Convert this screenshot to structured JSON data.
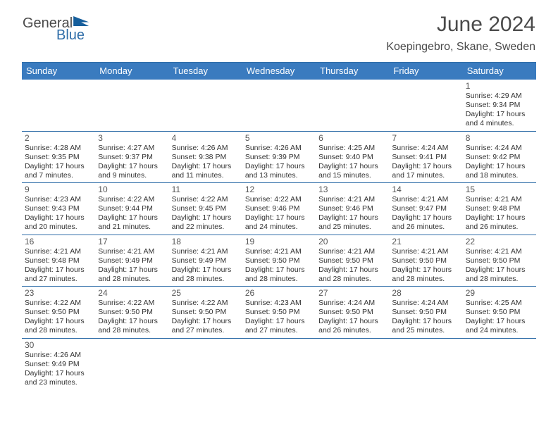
{
  "logo": {
    "word1": "General",
    "word2": "Blue"
  },
  "title": "June 2024",
  "subtitle": "Koepingebro, Skane, Sweden",
  "weekdays": [
    "Sunday",
    "Monday",
    "Tuesday",
    "Wednesday",
    "Thursday",
    "Friday",
    "Saturday"
  ],
  "colors": {
    "header_bar": "#3a7bbf",
    "rule": "#2f6da8",
    "title_text": "#4a4a4a",
    "body_text": "#333333"
  },
  "weeks": [
    [
      null,
      null,
      null,
      null,
      null,
      null,
      {
        "n": "1",
        "sr": "Sunrise: 4:29 AM",
        "ss": "Sunset: 9:34 PM",
        "d1": "Daylight: 17 hours",
        "d2": "and 4 minutes."
      }
    ],
    [
      {
        "n": "2",
        "sr": "Sunrise: 4:28 AM",
        "ss": "Sunset: 9:35 PM",
        "d1": "Daylight: 17 hours",
        "d2": "and 7 minutes."
      },
      {
        "n": "3",
        "sr": "Sunrise: 4:27 AM",
        "ss": "Sunset: 9:37 PM",
        "d1": "Daylight: 17 hours",
        "d2": "and 9 minutes."
      },
      {
        "n": "4",
        "sr": "Sunrise: 4:26 AM",
        "ss": "Sunset: 9:38 PM",
        "d1": "Daylight: 17 hours",
        "d2": "and 11 minutes."
      },
      {
        "n": "5",
        "sr": "Sunrise: 4:26 AM",
        "ss": "Sunset: 9:39 PM",
        "d1": "Daylight: 17 hours",
        "d2": "and 13 minutes."
      },
      {
        "n": "6",
        "sr": "Sunrise: 4:25 AM",
        "ss": "Sunset: 9:40 PM",
        "d1": "Daylight: 17 hours",
        "d2": "and 15 minutes."
      },
      {
        "n": "7",
        "sr": "Sunrise: 4:24 AM",
        "ss": "Sunset: 9:41 PM",
        "d1": "Daylight: 17 hours",
        "d2": "and 17 minutes."
      },
      {
        "n": "8",
        "sr": "Sunrise: 4:24 AM",
        "ss": "Sunset: 9:42 PM",
        "d1": "Daylight: 17 hours",
        "d2": "and 18 minutes."
      }
    ],
    [
      {
        "n": "9",
        "sr": "Sunrise: 4:23 AM",
        "ss": "Sunset: 9:43 PM",
        "d1": "Daylight: 17 hours",
        "d2": "and 20 minutes."
      },
      {
        "n": "10",
        "sr": "Sunrise: 4:22 AM",
        "ss": "Sunset: 9:44 PM",
        "d1": "Daylight: 17 hours",
        "d2": "and 21 minutes."
      },
      {
        "n": "11",
        "sr": "Sunrise: 4:22 AM",
        "ss": "Sunset: 9:45 PM",
        "d1": "Daylight: 17 hours",
        "d2": "and 22 minutes."
      },
      {
        "n": "12",
        "sr": "Sunrise: 4:22 AM",
        "ss": "Sunset: 9:46 PM",
        "d1": "Daylight: 17 hours",
        "d2": "and 24 minutes."
      },
      {
        "n": "13",
        "sr": "Sunrise: 4:21 AM",
        "ss": "Sunset: 9:46 PM",
        "d1": "Daylight: 17 hours",
        "d2": "and 25 minutes."
      },
      {
        "n": "14",
        "sr": "Sunrise: 4:21 AM",
        "ss": "Sunset: 9:47 PM",
        "d1": "Daylight: 17 hours",
        "d2": "and 26 minutes."
      },
      {
        "n": "15",
        "sr": "Sunrise: 4:21 AM",
        "ss": "Sunset: 9:48 PM",
        "d1": "Daylight: 17 hours",
        "d2": "and 26 minutes."
      }
    ],
    [
      {
        "n": "16",
        "sr": "Sunrise: 4:21 AM",
        "ss": "Sunset: 9:48 PM",
        "d1": "Daylight: 17 hours",
        "d2": "and 27 minutes."
      },
      {
        "n": "17",
        "sr": "Sunrise: 4:21 AM",
        "ss": "Sunset: 9:49 PM",
        "d1": "Daylight: 17 hours",
        "d2": "and 28 minutes."
      },
      {
        "n": "18",
        "sr": "Sunrise: 4:21 AM",
        "ss": "Sunset: 9:49 PM",
        "d1": "Daylight: 17 hours",
        "d2": "and 28 minutes."
      },
      {
        "n": "19",
        "sr": "Sunrise: 4:21 AM",
        "ss": "Sunset: 9:50 PM",
        "d1": "Daylight: 17 hours",
        "d2": "and 28 minutes."
      },
      {
        "n": "20",
        "sr": "Sunrise: 4:21 AM",
        "ss": "Sunset: 9:50 PM",
        "d1": "Daylight: 17 hours",
        "d2": "and 28 minutes."
      },
      {
        "n": "21",
        "sr": "Sunrise: 4:21 AM",
        "ss": "Sunset: 9:50 PM",
        "d1": "Daylight: 17 hours",
        "d2": "and 28 minutes."
      },
      {
        "n": "22",
        "sr": "Sunrise: 4:21 AM",
        "ss": "Sunset: 9:50 PM",
        "d1": "Daylight: 17 hours",
        "d2": "and 28 minutes."
      }
    ],
    [
      {
        "n": "23",
        "sr": "Sunrise: 4:22 AM",
        "ss": "Sunset: 9:50 PM",
        "d1": "Daylight: 17 hours",
        "d2": "and 28 minutes."
      },
      {
        "n": "24",
        "sr": "Sunrise: 4:22 AM",
        "ss": "Sunset: 9:50 PM",
        "d1": "Daylight: 17 hours",
        "d2": "and 28 minutes."
      },
      {
        "n": "25",
        "sr": "Sunrise: 4:22 AM",
        "ss": "Sunset: 9:50 PM",
        "d1": "Daylight: 17 hours",
        "d2": "and 27 minutes."
      },
      {
        "n": "26",
        "sr": "Sunrise: 4:23 AM",
        "ss": "Sunset: 9:50 PM",
        "d1": "Daylight: 17 hours",
        "d2": "and 27 minutes."
      },
      {
        "n": "27",
        "sr": "Sunrise: 4:24 AM",
        "ss": "Sunset: 9:50 PM",
        "d1": "Daylight: 17 hours",
        "d2": "and 26 minutes."
      },
      {
        "n": "28",
        "sr": "Sunrise: 4:24 AM",
        "ss": "Sunset: 9:50 PM",
        "d1": "Daylight: 17 hours",
        "d2": "and 25 minutes."
      },
      {
        "n": "29",
        "sr": "Sunrise: 4:25 AM",
        "ss": "Sunset: 9:50 PM",
        "d1": "Daylight: 17 hours",
        "d2": "and 24 minutes."
      }
    ],
    [
      {
        "n": "30",
        "sr": "Sunrise: 4:26 AM",
        "ss": "Sunset: 9:49 PM",
        "d1": "Daylight: 17 hours",
        "d2": "and 23 minutes."
      },
      null,
      null,
      null,
      null,
      null,
      null
    ]
  ]
}
